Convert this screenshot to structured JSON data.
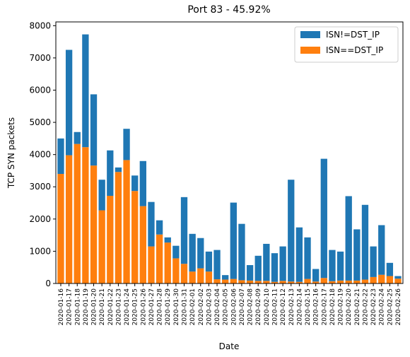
{
  "chart_data": {
    "type": "stacked_bar",
    "title": "Port 83 - 45.92%",
    "x_label": "Date",
    "y_label": "TCP SYN packets",
    "categories": [
      "2020-01-16",
      "2020-01-17",
      "2020-01-18",
      "2020-01-19",
      "2020-01-20",
      "2020-01-21",
      "2020-01-22",
      "2020-01-23",
      "2020-01-24",
      "2020-01-25",
      "2020-01-26",
      "2020-01-27",
      "2020-01-28",
      "2020-01-29",
      "2020-01-30",
      "2020-01-31",
      "2020-02-01",
      "2020-02-02",
      "2020-02-03",
      "2020-02-04",
      "2020-02-05",
      "2020-02-06",
      "2020-02-07",
      "2020-02-08",
      "2020-02-09",
      "2020-02-10",
      "2020-02-11",
      "2020-02-12",
      "2020-02-13",
      "2020-02-14",
      "2020-02-15",
      "2020-02-16",
      "2020-02-17",
      "2020-02-18",
      "2020-02-19",
      "2020-02-20",
      "2020-02-21",
      "2020-02-22",
      "2020-02-23",
      "2020-02-24",
      "2020-02-25",
      "2020-02-26"
    ],
    "series": [
      {
        "name": "ISN==DST_IP",
        "color": "#ff7f0e",
        "values": [
          3400,
          3980,
          4330,
          4230,
          3660,
          2270,
          2720,
          3460,
          3830,
          2870,
          2400,
          1150,
          1520,
          1270,
          780,
          610,
          370,
          470,
          370,
          130,
          120,
          140,
          100,
          90,
          80,
          80,
          50,
          80,
          60,
          50,
          140,
          60,
          170,
          70,
          90,
          90,
          90,
          120,
          200,
          270,
          230,
          150
        ]
      },
      {
        "name": "ISN!=DST_IP",
        "color": "#1f77b4",
        "values": [
          1100,
          3270,
          370,
          3500,
          2210,
          950,
          1410,
          140,
          970,
          480,
          1400,
          1380,
          440,
          160,
          390,
          2070,
          1170,
          940,
          620,
          910,
          140,
          2370,
          1750,
          480,
          780,
          1150,
          890,
          1070,
          3160,
          1690,
          1290,
          390,
          3700,
          970,
          900,
          2620,
          1590,
          2320,
          950,
          1540,
          410,
          80
        ]
      }
    ],
    "legend_order": [
      1,
      0
    ],
    "legend": "upper right",
    "ylim": [
      0,
      8117
    ],
    "yticks": [
      0,
      1000,
      2000,
      3000,
      4000,
      5000,
      6000,
      7000,
      8000
    ]
  }
}
